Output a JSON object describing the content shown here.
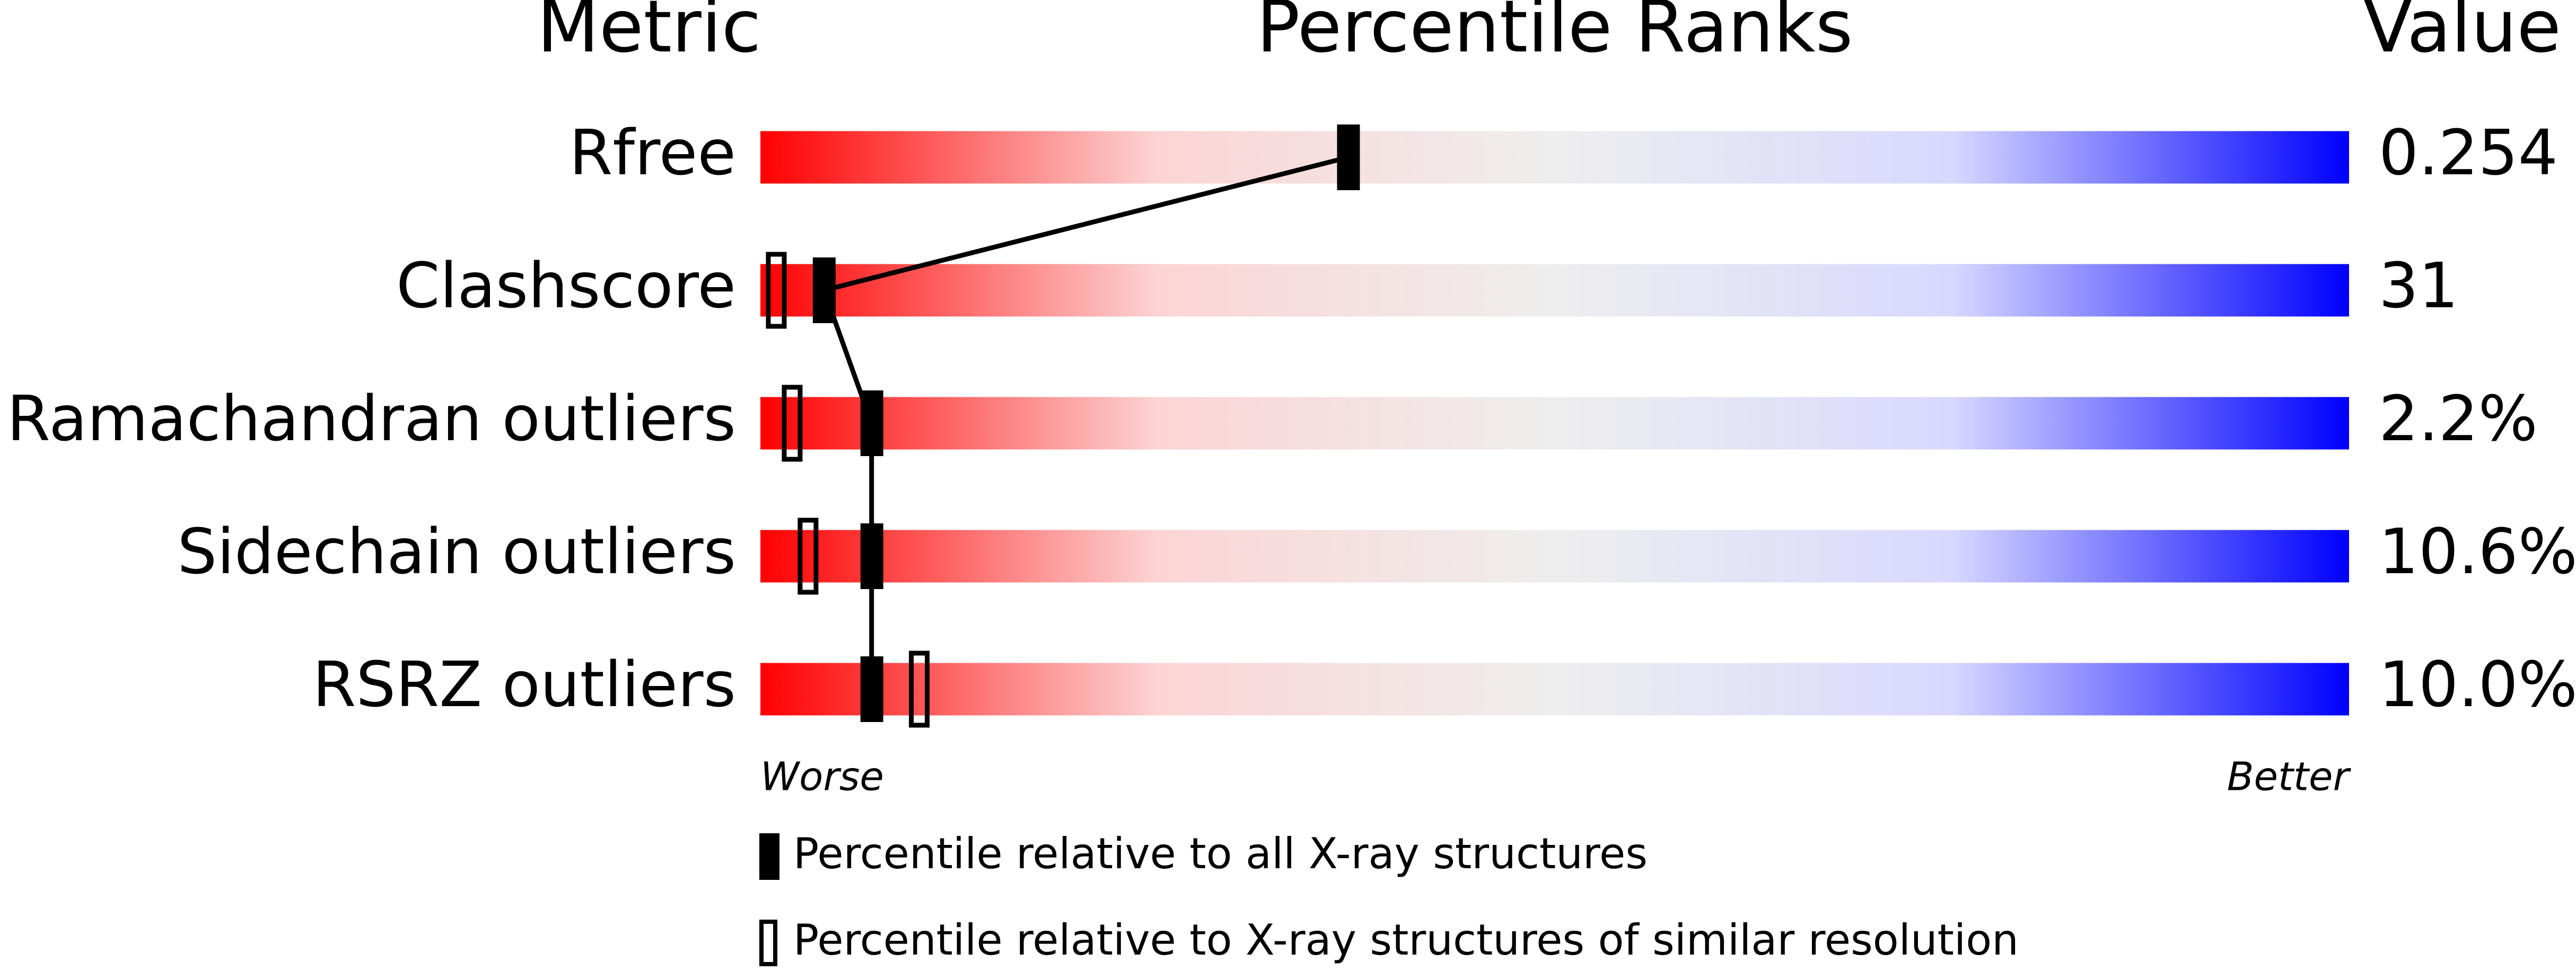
{
  "chart_data": {
    "type": "slider",
    "title": "Percentile Ranks",
    "metric_header": "Metric",
    "value_header": "Value",
    "categories": [
      "Rfree",
      "Clashscore",
      "Ramachandran outliers",
      "Sidechain outliers",
      "RSRZ outliers"
    ],
    "metric_values": [
      "0.254",
      "31",
      "2.2%",
      "10.6%",
      "10.0%"
    ],
    "xlim": [
      0,
      100
    ],
    "x_label_low": "Worse",
    "x_label_high": "Better",
    "gradient": [
      "#ff0000",
      "#fcd4d4",
      "#eeeeee",
      "#d8d8ff",
      "#0000ff"
    ],
    "series": [
      {
        "name": "Percentile relative to all X-ray structures",
        "style": "filled",
        "color": "#000000",
        "values": [
          37,
          4,
          7,
          7,
          7
        ]
      },
      {
        "name": "Percentile relative to X-ray structures of similar resolution",
        "style": "open",
        "color": "#000000",
        "values": [
          null,
          1,
          2,
          3,
          10
        ]
      }
    ]
  }
}
